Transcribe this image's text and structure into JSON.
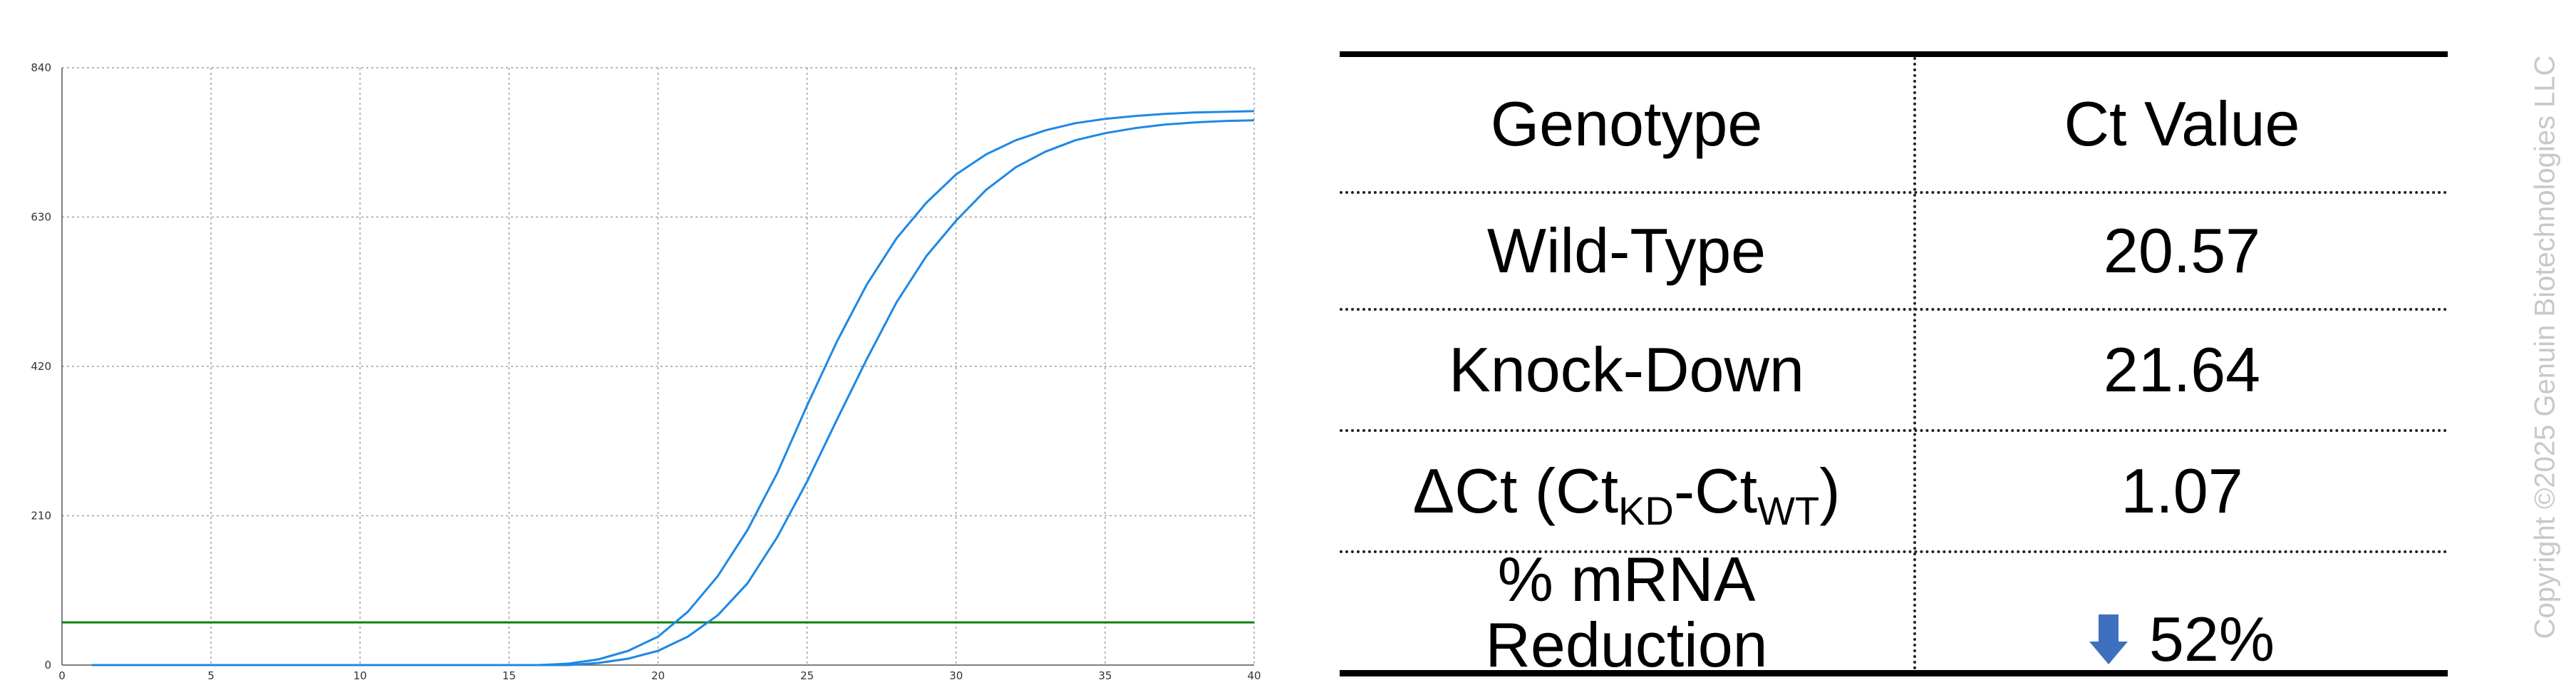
{
  "chart_data": {
    "type": "line",
    "title": "",
    "xlabel": "",
    "ylabel": "",
    "xlim": [
      0,
      40
    ],
    "ylim": [
      0,
      840
    ],
    "x_ticks": [
      "0",
      "5",
      "10",
      "15",
      "20",
      "25",
      "30",
      "35",
      "40"
    ],
    "y_ticks": [
      "0",
      "210",
      "420",
      "630",
      "840"
    ],
    "grid": true,
    "x": [
      1,
      16,
      17,
      18,
      19,
      20,
      21,
      22,
      23,
      24,
      25,
      26,
      27,
      28,
      29,
      30,
      31,
      32,
      33,
      34,
      35,
      36,
      37,
      38,
      39,
      40
    ],
    "series": [
      {
        "values": [
          0,
          0,
          2,
          8,
          20,
          40,
          75,
          125,
          190,
          270,
          365,
          455,
          535,
          600,
          650,
          690,
          718,
          738,
          752,
          762,
          768,
          772,
          775,
          777,
          778,
          779
        ]
      },
      {
        "values": [
          0,
          0,
          0,
          3,
          9,
          20,
          40,
          70,
          115,
          180,
          258,
          345,
          430,
          510,
          575,
          625,
          668,
          700,
          722,
          738,
          748,
          755,
          760,
          763,
          765,
          766
        ]
      }
    ],
    "threshold": 60,
    "colors": {
      "curves": "#1e88e5",
      "threshold": "#118011",
      "grid": "#a0a0a0"
    }
  },
  "table": {
    "headers": [
      "Genotype",
      "Ct Value"
    ],
    "rows": [
      {
        "genotype": "Wild-Type",
        "value": "20.57"
      },
      {
        "genotype": "Knock-Down",
        "value": "21.64"
      }
    ],
    "delta": {
      "prefix": "ΔCt (Ct",
      "sub1": "KD",
      "mid": "-Ct",
      "sub2": "WT",
      "suffix": ")",
      "value": "1.07"
    },
    "reduction": {
      "line1": "% mRNA",
      "line2": "Reduction",
      "value": "52%",
      "arrow_icon": "arrow-down-icon",
      "arrow_color": "#3f6fbf"
    }
  },
  "copyright": "Copyright ©2025 Genuin Biotechnologies LLC"
}
